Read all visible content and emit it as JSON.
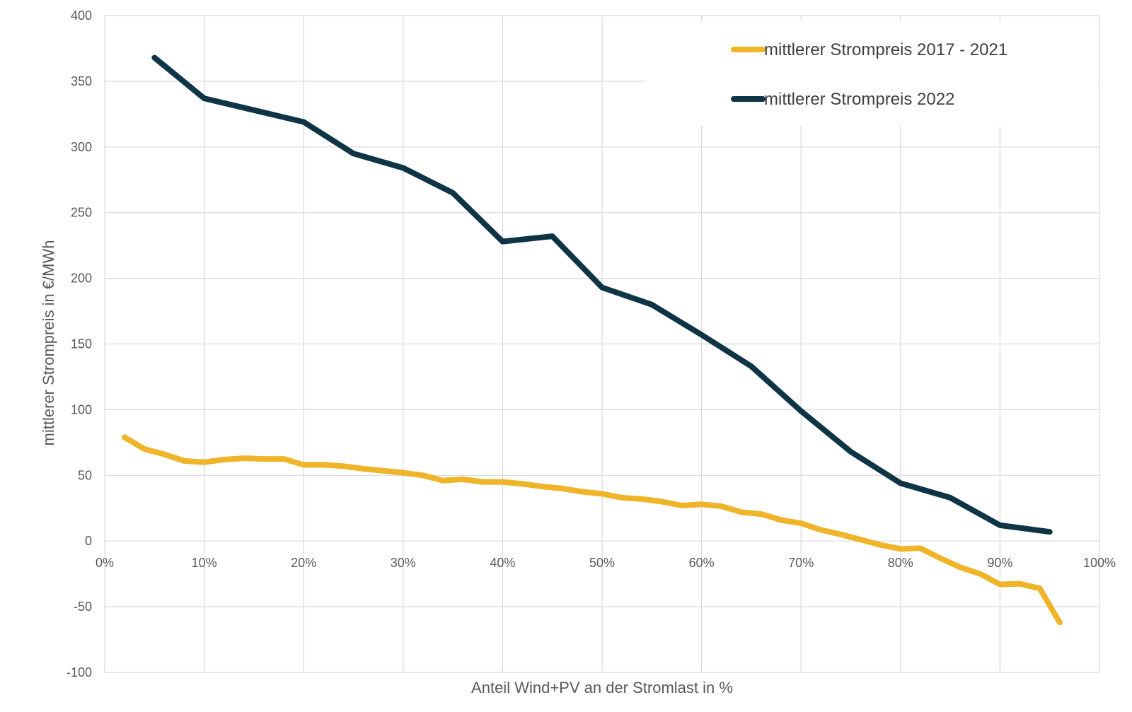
{
  "chart_data": {
    "type": "line",
    "title": "",
    "xlabel": "Anteil Wind+PV an der Stromlast in %",
    "ylabel": "mittlerer Strompreis in €/MWh",
    "xlim": [
      0,
      100
    ],
    "ylim": [
      -100,
      400
    ],
    "x_ticks": [
      0,
      10,
      20,
      30,
      40,
      50,
      60,
      70,
      80,
      90,
      100
    ],
    "x_tick_labels": [
      "0%",
      "10%",
      "20%",
      "30%",
      "40%",
      "50%",
      "60%",
      "70%",
      "80%",
      "90%",
      "100%"
    ],
    "y_ticks": [
      -100,
      -50,
      0,
      50,
      100,
      150,
      200,
      250,
      300,
      350,
      400
    ],
    "y_tick_labels": [
      "-100",
      "-50",
      "0",
      "50",
      "100",
      "150",
      "200",
      "250",
      "300",
      "350",
      "400"
    ],
    "grid": true,
    "legend_position": "top-right",
    "series": [
      {
        "name": "mittlerer Strompreis 2017 - 2021",
        "color": "#f0b429",
        "x": [
          2,
          4,
          6,
          8,
          10,
          12,
          14,
          16,
          18,
          20,
          22,
          24,
          26,
          28,
          30,
          32,
          34,
          36,
          38,
          40,
          42,
          44,
          46,
          48,
          50,
          52,
          54,
          56,
          58,
          60,
          62,
          64,
          66,
          68,
          70,
          72,
          74,
          76,
          78,
          80,
          82,
          84,
          86,
          88,
          90,
          92,
          94,
          96
        ],
        "y": [
          79,
          70,
          66,
          61,
          60,
          62,
          63,
          62.5,
          62.5,
          58,
          58,
          57,
          55,
          53.5,
          52,
          50,
          46,
          47,
          45,
          45,
          43.5,
          41.5,
          40,
          37.5,
          36,
          33,
          32,
          30,
          27,
          28,
          26.5,
          22,
          20.5,
          16,
          13.5,
          8.5,
          5,
          1,
          -3,
          -6,
          -5.5,
          -13,
          -20,
          -25,
          -33,
          -32.5,
          -36,
          -62
        ]
      },
      {
        "name": "mittlerer Strompreis 2022",
        "color": "#0e3446",
        "x": [
          5,
          10,
          15,
          20,
          25,
          30,
          35,
          40,
          45,
          50,
          55,
          60,
          65,
          70,
          75,
          80,
          85,
          90,
          95
        ],
        "y": [
          368,
          337,
          328,
          319,
          295,
          284,
          265,
          228,
          232,
          193,
          180,
          157,
          133,
          99,
          68,
          44,
          33,
          12,
          7
        ]
      }
    ]
  }
}
